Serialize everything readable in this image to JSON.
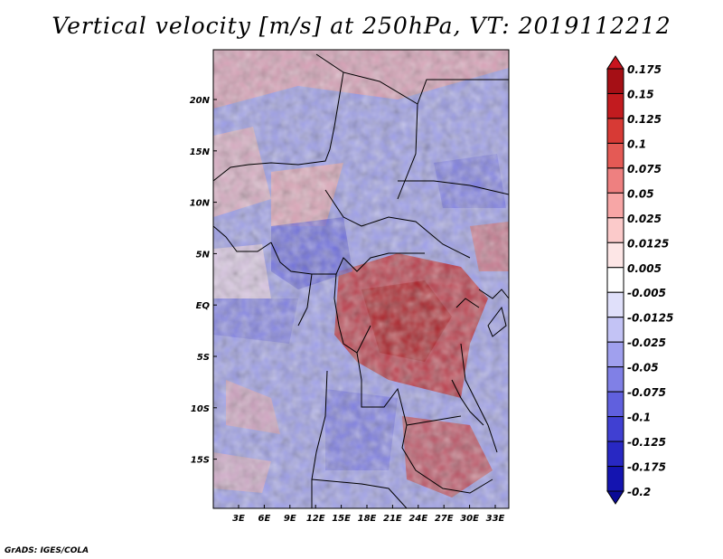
{
  "title": "Vertical velocity [m/s] at 250hPa, VT: 2019112212",
  "credit": "GrADS: IGES/COLA",
  "map": {
    "lat_labels": [
      "20N",
      "15N",
      "10N",
      "5N",
      "EQ",
      "5S",
      "10S",
      "15S"
    ],
    "lon_labels": [
      "3E",
      "6E",
      "9E",
      "12E",
      "15E",
      "18E",
      "21E",
      "24E",
      "27E",
      "30E",
      "33E"
    ]
  },
  "colorbar": {
    "labels": [
      "0.175",
      "0.15",
      "0.125",
      "0.1",
      "0.075",
      "0.05",
      "0.025",
      "0.0125",
      "0.005",
      "-0.005",
      "-0.0125",
      "-0.025",
      "-0.05",
      "-0.075",
      "-0.1",
      "-0.125",
      "-0.175",
      "-0.2"
    ],
    "colors": [
      "#c8141e",
      "#a50f15",
      "#c21b1f",
      "#d73a35",
      "#e45a55",
      "#ee8080",
      "#f7a6a6",
      "#fbcaca",
      "#fde6e6",
      "#ffffff",
      "#e0e0fa",
      "#c3c3f5",
      "#a0a0ee",
      "#8080e6",
      "#6060de",
      "#4040d2",
      "#2828c3",
      "#1414b0",
      "#0a0a96"
    ]
  }
}
